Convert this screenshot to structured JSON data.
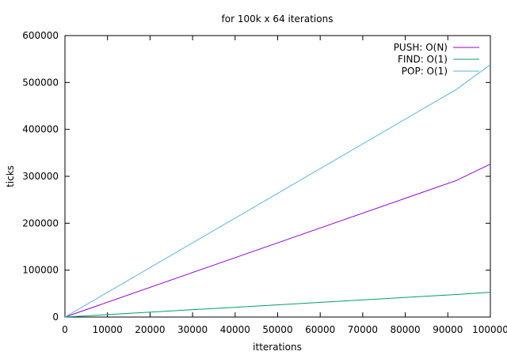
{
  "chart_data": {
    "type": "line",
    "title": "for 100k x 64 iterations",
    "xlabel": "itterations",
    "ylabel": "ticks",
    "xlim": [
      0,
      100000
    ],
    "ylim": [
      0,
      600000
    ],
    "xticks": [
      0,
      10000,
      20000,
      30000,
      40000,
      50000,
      60000,
      70000,
      80000,
      90000,
      100000
    ],
    "yticks": [
      0,
      100000,
      200000,
      300000,
      400000,
      500000,
      600000
    ],
    "xtick_labels": [
      "0",
      "10000",
      "20000",
      "30000",
      "40000",
      "50000",
      "60000",
      "70000",
      "80000",
      "90000",
      "100000"
    ],
    "ytick_labels": [
      "0",
      "100000",
      "200000",
      "300000",
      "400000",
      "500000",
      "600000"
    ],
    "grid": false,
    "legend_position": "top-right",
    "series": [
      {
        "name": "PUSH: O(N)",
        "color": "#9400d3",
        "x": [
          0,
          92000,
          100000
        ],
        "y": [
          0,
          291000,
          326000
        ]
      },
      {
        "name": "FIND: O(1)",
        "color": "#009e73",
        "x": [
          0,
          92000,
          100000
        ],
        "y": [
          0,
          48000,
          53000
        ]
      },
      {
        "name": "POP: O(1)",
        "color": "#56b4e9",
        "x": [
          0,
          92000,
          100000
        ],
        "y": [
          0,
          485000,
          538000
        ]
      }
    ]
  }
}
